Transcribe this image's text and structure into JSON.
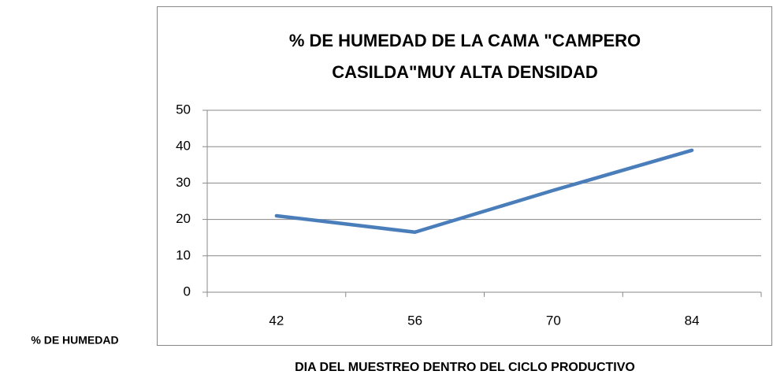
{
  "chart_data": {
    "type": "line",
    "title": "% DE HUMEDAD DE LA CAMA \"CAMPERO CASILDA\"MUY ALTA DENSIDAD",
    "x_label": "DIA DEL MUESTREO DENTRO DEL CICLO PRODUCTIVO",
    "y_label": "% DE HUMEDAD",
    "categories": [
      "42",
      "56",
      "70",
      "84"
    ],
    "series": [
      {
        "name": "% DE HUMEDAD",
        "color": "#4a7ebb",
        "values": [
          21,
          16.5,
          28,
          39
        ]
      }
    ],
    "ylim": [
      0,
      50
    ],
    "yticks": [
      0,
      10,
      20,
      30,
      40,
      50
    ],
    "grid": true
  }
}
